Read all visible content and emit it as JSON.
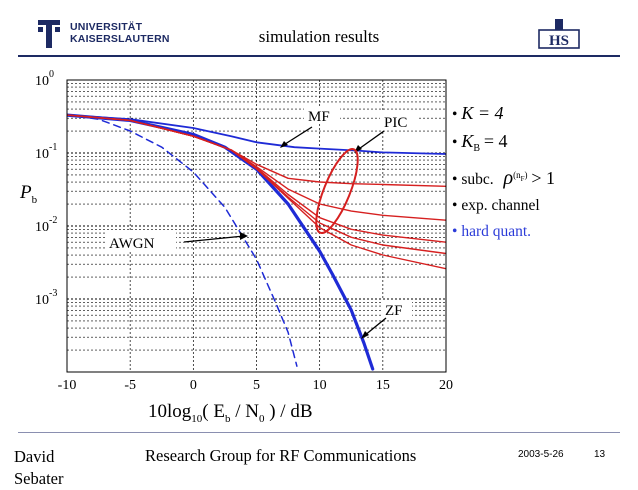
{
  "header": {
    "title": "simulation results",
    "university_line1": "UNIVERSITÄT",
    "university_line2": "KAISERSLAUTERN",
    "right_logo_text": "HS"
  },
  "notes": {
    "item_k": "K = 4",
    "item_kb": "K",
    "item_kb_sub": "B",
    "item_kb_val": "= 4",
    "item_subc": "subc.",
    "item_subc_rho": "ρ",
    "item_subc_sup": "(n",
    "item_subc_sup_sub": "F",
    "item_subc_sup_end": ")",
    "item_subc_val": "> 1",
    "item_channel": "exp. channel",
    "item_quant": "hard quant.",
    "bullet": "•"
  },
  "footer": {
    "author": "David Sebater",
    "group": "Research Group for RF Communications",
    "date": "2003-5-26",
    "page": "13"
  },
  "colors": {
    "bold_blue": "#1f2bd6",
    "red": "#d62020",
    "highlight_blue": "#2b3bd8",
    "brand_navy": "#1d2a63"
  },
  "chart_data": {
    "type": "line",
    "ylabel": "P",
    "ylabel_sub": "b",
    "xlabel": "10log",
    "xlabel_sub": "10",
    "xlabel_rest": "( E",
    "xlabel_eb_sub": "b",
    "xlabel_mid": " / N",
    "xlabel_n0_sub": "0",
    "xlabel_end": " ) / dB",
    "x_ticks": [
      -10,
      -5,
      0,
      5,
      10,
      15,
      20
    ],
    "x_tick_labels": [
      "-10",
      "-5",
      "0",
      "5",
      "10",
      "15",
      "20"
    ],
    "y_ticks": [
      1,
      0.1,
      0.01,
      0.001
    ],
    "y_tick_base": "10",
    "y_tick_exponents": [
      "0",
      "-1",
      "-2",
      "-3"
    ],
    "xlim": [
      -10,
      20
    ],
    "ylim": [
      0.0001,
      1
    ],
    "y_scale": "log",
    "grid": true,
    "annotations": {
      "mf": "MF",
      "pic": "PIC",
      "awgn": "AWGN",
      "zf": "ZF"
    },
    "series": [
      {
        "name": "MF",
        "color": "#1f2bd6",
        "width": 1.8,
        "dash": "",
        "x": [
          -10,
          -5,
          0,
          3,
          5,
          8,
          10,
          13,
          15,
          20
        ],
        "y": [
          0.33,
          0.29,
          0.22,
          0.17,
          0.14,
          0.12,
          0.115,
          0.108,
          0.102,
          0.097
        ]
      },
      {
        "name": "AWGN",
        "color": "#1f2bd6",
        "width": 1.5,
        "dash": "7,5",
        "x": [
          -10,
          -7.5,
          -5,
          -2.5,
          0,
          2.5,
          5,
          6.5,
          7.5,
          8.2
        ],
        "y": [
          0.33,
          0.29,
          0.2,
          0.12,
          0.055,
          0.018,
          0.0035,
          0.0009,
          0.00035,
          0.00012
        ]
      },
      {
        "name": "ZF",
        "color": "#1f2bd6",
        "width": 3.2,
        "dash": "",
        "x": [
          -10,
          -5,
          0,
          2.5,
          5,
          7.5,
          10,
          11,
          12.5,
          13.5,
          14.2
        ],
        "y": [
          0.33,
          0.28,
          0.18,
          0.12,
          0.06,
          0.02,
          0.0045,
          0.0022,
          0.0007,
          0.00025,
          0.00011
        ]
      },
      {
        "name": "PIC 1",
        "color": "#d62020",
        "width": 1.4,
        "dash": "",
        "x": [
          -10,
          -5,
          0,
          3,
          5,
          7.5,
          10,
          12.5,
          15,
          20
        ],
        "y": [
          0.33,
          0.28,
          0.17,
          0.11,
          0.07,
          0.045,
          0.04,
          0.038,
          0.037,
          0.035
        ]
      },
      {
        "name": "PIC 2",
        "color": "#d62020",
        "width": 1.4,
        "dash": "",
        "x": [
          -10,
          -5,
          0,
          3,
          5,
          7.5,
          10,
          12.5,
          15,
          20
        ],
        "y": [
          0.33,
          0.28,
          0.17,
          0.11,
          0.065,
          0.032,
          0.02,
          0.016,
          0.014,
          0.012
        ]
      },
      {
        "name": "PIC 3",
        "color": "#d62020",
        "width": 1.4,
        "dash": "",
        "x": [
          -10,
          -5,
          0,
          3,
          5,
          7.5,
          10,
          12.5,
          15,
          20
        ],
        "y": [
          0.33,
          0.28,
          0.17,
          0.11,
          0.063,
          0.027,
          0.013,
          0.009,
          0.0075,
          0.006
        ]
      },
      {
        "name": "PIC 4",
        "color": "#d62020",
        "width": 1.4,
        "dash": "",
        "x": [
          -10,
          -5,
          0,
          3,
          5,
          7.5,
          10,
          12.5,
          15,
          20
        ],
        "y": [
          0.33,
          0.28,
          0.17,
          0.11,
          0.062,
          0.025,
          0.011,
          0.007,
          0.0055,
          0.0042
        ]
      },
      {
        "name": "PIC 5",
        "color": "#d62020",
        "width": 1.4,
        "dash": "",
        "x": [
          -10,
          -5,
          0,
          3,
          5,
          7.5,
          10,
          12.5,
          15,
          20
        ],
        "y": [
          0.33,
          0.28,
          0.17,
          0.11,
          0.061,
          0.024,
          0.0095,
          0.0055,
          0.004,
          0.0026
        ]
      }
    ]
  }
}
